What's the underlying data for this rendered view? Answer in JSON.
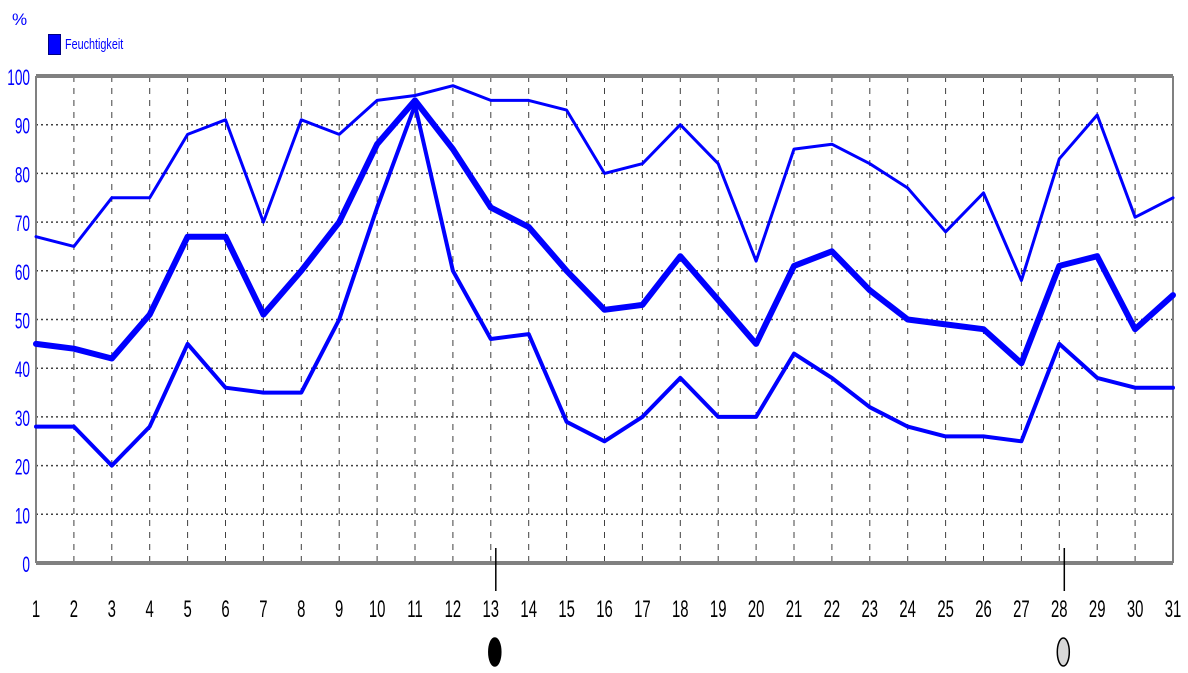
{
  "chart_data": {
    "type": "line",
    "ylabel": "%",
    "legend": {
      "label": "Feuchtigkeit",
      "color": "#0000ff",
      "placement": "top-left"
    },
    "x": [
      1,
      2,
      3,
      4,
      5,
      6,
      7,
      8,
      9,
      10,
      11,
      12,
      13,
      14,
      15,
      16,
      17,
      18,
      19,
      20,
      21,
      22,
      23,
      24,
      25,
      26,
      27,
      28,
      29,
      30,
      31
    ],
    "xlim": [
      1,
      31
    ],
    "ylim": [
      0,
      100
    ],
    "y_ticks": [
      0,
      10,
      20,
      30,
      40,
      50,
      60,
      70,
      80,
      90,
      100
    ],
    "grid": true,
    "series": [
      {
        "role": "max",
        "width": 3,
        "values": [
          67,
          65,
          75,
          75,
          88,
          91,
          70,
          91,
          88,
          95,
          96,
          98,
          95,
          95,
          93,
          80,
          82,
          90,
          82,
          62,
          85,
          86,
          82,
          77,
          68,
          76,
          58,
          83,
          92,
          71,
          75
        ]
      },
      {
        "role": "mean",
        "width": 6,
        "values": [
          45,
          44,
          42,
          51,
          67,
          67,
          51,
          60,
          70,
          86,
          95,
          85,
          73,
          69,
          60,
          52,
          53,
          63,
          54,
          45,
          61,
          64,
          56,
          50,
          49,
          48,
          41,
          61,
          63,
          48,
          55
        ]
      },
      {
        "role": "min",
        "width": 4,
        "values": [
          28,
          28,
          20,
          28,
          45,
          36,
          35,
          35,
          50,
          73,
          94,
          60,
          46,
          47,
          29,
          25,
          30,
          38,
          30,
          30,
          43,
          38,
          32,
          28,
          26,
          26,
          25,
          45,
          38,
          36,
          36
        ]
      }
    ],
    "moon_markers": [
      {
        "x": 13,
        "phase": "new-moon",
        "fill": "#000000"
      },
      {
        "x": 28,
        "phase": "full-moon",
        "fill": "#d8d8d8"
      }
    ],
    "colors": {
      "series": "#0000ff",
      "axis_text": "#0000ff",
      "frame": "#808080",
      "grid": "#404040",
      "tick_text": "#000000"
    }
  }
}
